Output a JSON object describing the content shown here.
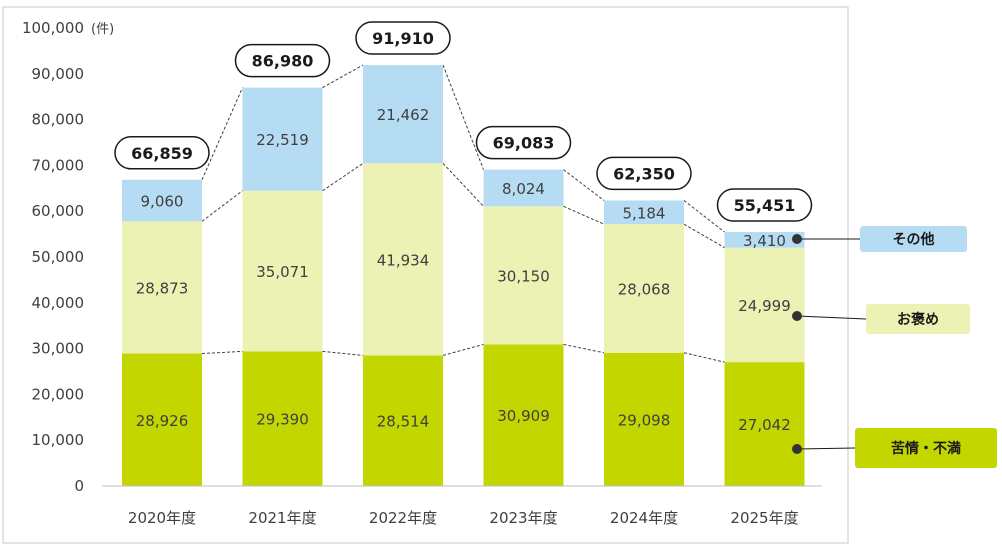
{
  "chart_data": {
    "type": "bar",
    "stacked": true,
    "unit_label": "(件)",
    "categories": [
      "2020年度",
      "2021年度",
      "2022年度",
      "2023年度",
      "2024年度",
      "2025年度"
    ],
    "series": [
      {
        "name": "苦情・不満",
        "color": "#c4d600",
        "values": [
          28926,
          29390,
          28514,
          30909,
          29098,
          27042
        ]
      },
      {
        "name": "お褒め",
        "color": "#ecf2b4",
        "values": [
          28873,
          35071,
          41934,
          30150,
          28068,
          24999
        ]
      },
      {
        "name": "その他",
        "color": "#b5dcf3",
        "values": [
          9060,
          22519,
          21462,
          8024,
          5184,
          3410
        ]
      }
    ],
    "totals": [
      66859,
      86980,
      91910,
      69083,
      62350,
      55451
    ],
    "ylim": [
      0,
      100000
    ],
    "yticks": [
      0,
      10000,
      20000,
      30000,
      40000,
      50000,
      60000,
      70000,
      80000,
      90000,
      100000
    ],
    "legend_placement": "right, beside final bar",
    "grid": false
  }
}
